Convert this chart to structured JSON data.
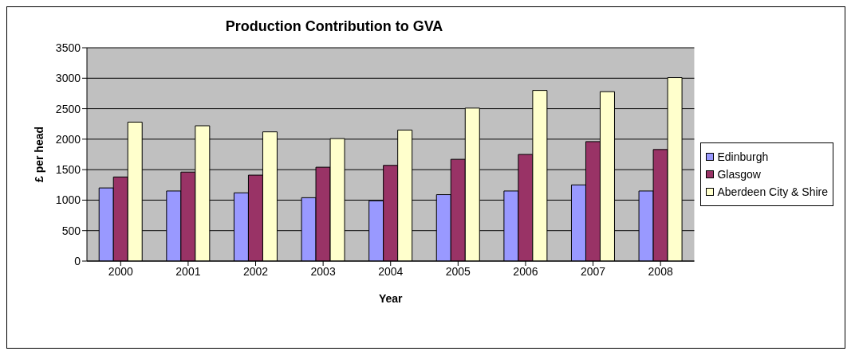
{
  "chart_data": {
    "type": "bar",
    "title": "Production Contribution to GVA",
    "xlabel": "Year",
    "ylabel": "£ per head",
    "categories": [
      "2000",
      "2001",
      "2002",
      "2003",
      "2004",
      "2005",
      "2006",
      "2007",
      "2008"
    ],
    "series": [
      {
        "name": "Edinburgh",
        "color": "#9999ff",
        "values": [
          1200,
          1150,
          1120,
          1040,
          990,
          1090,
          1150,
          1250,
          1150
        ]
      },
      {
        "name": "Glasgow",
        "color": "#993366",
        "values": [
          1380,
          1460,
          1410,
          1540,
          1570,
          1670,
          1750,
          1960,
          1830
        ]
      },
      {
        "name": "Aberdeen City & Shire",
        "color": "#ffffcc",
        "values": [
          2280,
          2220,
          2120,
          2010,
          2150,
          2510,
          2800,
          2780,
          3010
        ]
      }
    ],
    "ylim": [
      0,
      3500
    ],
    "yticks": [
      0,
      500,
      1000,
      1500,
      2000,
      2500,
      3000,
      3500
    ],
    "grid": "y",
    "legend": "right"
  }
}
